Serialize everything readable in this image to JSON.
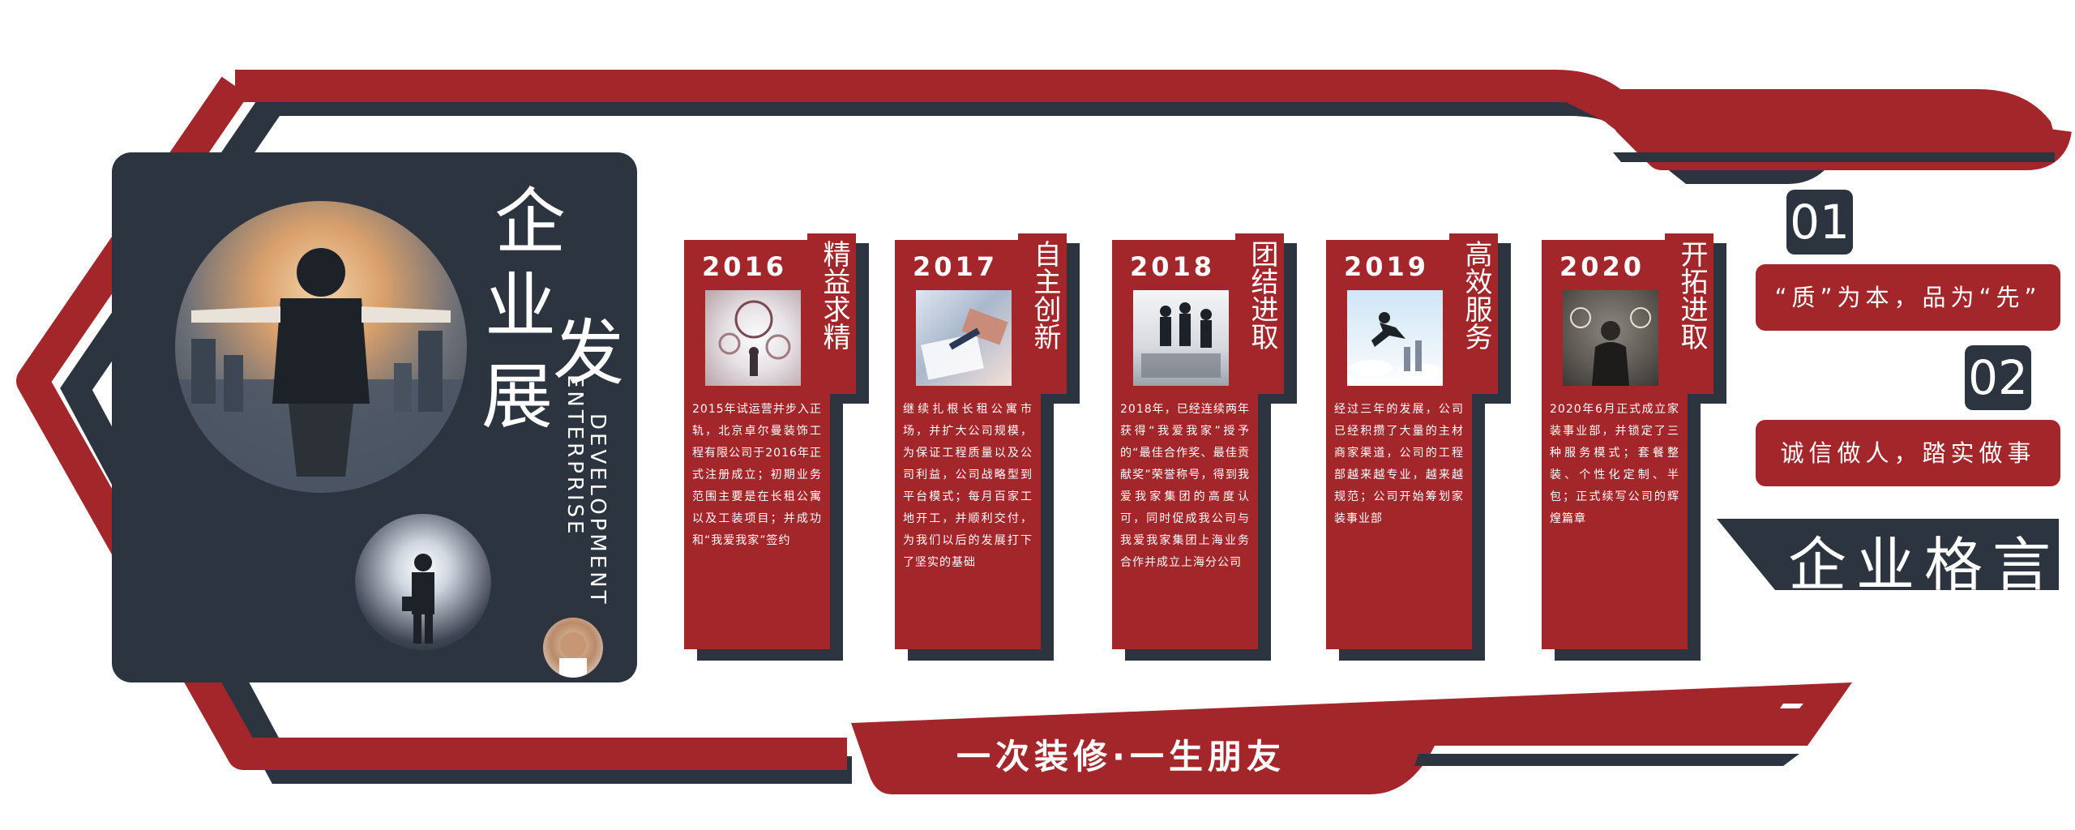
{
  "colors": {
    "red": "#a3262a",
    "navy": "#2c3440",
    "white": "#ffffff"
  },
  "panel": {
    "title_chars": [
      "企",
      "业",
      "发",
      "展"
    ],
    "english_1": "ENTERPRISE",
    "english_2": "DEVELOPMENT"
  },
  "cards": [
    {
      "year": "2016",
      "motto": "精益求精",
      "text": "2015年试运营并步入正轨，北京卓尔曼装饰工程有限公司于2016年正式注册成立；初期业务范围主要是在长租公寓以及工装项目；并成功和“我爱我家”签约"
    },
    {
      "year": "2017",
      "motto": "自主创新",
      "text": "继续扎根长租公寓市场，并扩大公司规模，为保证工程质量以及公司利益，公司战略型到平台模式；每月百家工地开工，并顺利交付，为我们以后的发展打下了坚实的基础"
    },
    {
      "year": "2018",
      "motto": "团结进取",
      "text": "2018年，已经连续两年获得“我爱我家”授予的“最佳合作奖、最佳贡献奖”荣誉称号，得到我爱我家集团的高度认可，同时促成我公司与我爱我家集团上海业务合作并成立上海分公司"
    },
    {
      "year": "2019",
      "motto": "高效服务",
      "text": "经过三年的发展，公司已经积攒了大量的主材商家渠道，公司的工程部越来越专业，越来越规范；公司开始筹划家装事业部"
    },
    {
      "year": "2020",
      "motto": "开拓进取",
      "text": "2020年6月正式成立家装事业部，并锁定了三种服务模式；套餐整装、个性化定制、半包；正式续写公司的辉煌篇章"
    }
  ],
  "mottos": [
    {
      "num": "01",
      "text": "“质”为本，品为“先”"
    },
    {
      "num": "02",
      "text": "诚信做人，踏实做事"
    }
  ],
  "motto_title": "企业格言",
  "slogan": "一次装修·一生朋友"
}
